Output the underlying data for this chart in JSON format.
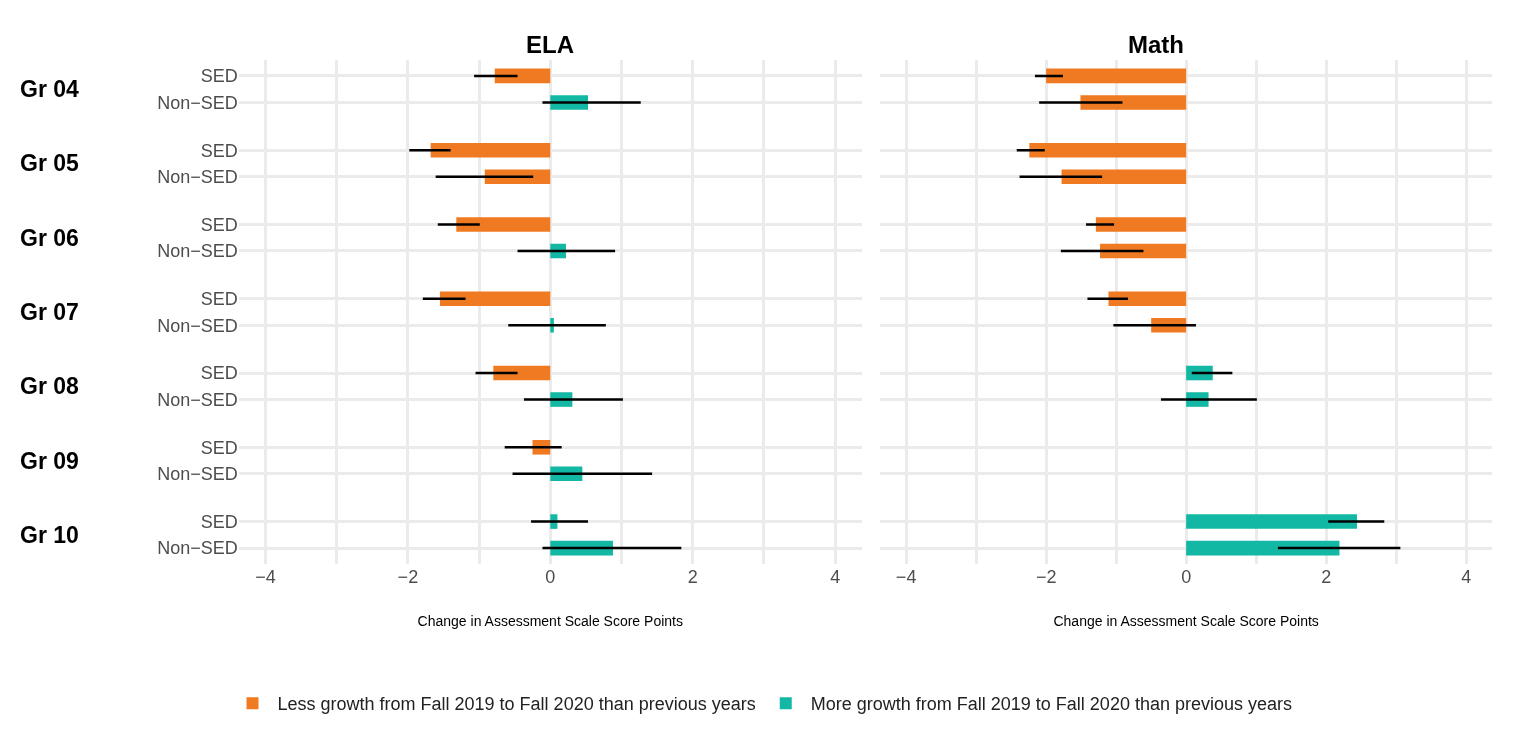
{
  "chart_data": [
    {
      "type": "bar",
      "orientation": "horizontal",
      "title": "ELA",
      "xlabel": "Change in Assessment Scale Score Points",
      "categories": [
        "SED",
        "Non−SED",
        "SED",
        "Non−SED",
        "SED",
        "Non−SED",
        "SED",
        "Non−SED",
        "SED",
        "Non−SED",
        "SED",
        "Non−SED",
        "SED",
        "Non−SED"
      ],
      "annotations": [
        "Gr 04",
        "Gr 05",
        "Gr 06",
        "Gr 07",
        "Gr 08",
        "Gr 09",
        "Gr 10"
      ],
      "series": [
        {
          "name": "Less growth from Fall 2019 to Fall 2020 than previous years",
          "color": "#f07a21",
          "values": [
            -0.78,
            null,
            -1.68,
            -0.92,
            -1.32,
            null,
            -1.55,
            null,
            -0.8,
            null,
            -0.25,
            null,
            null,
            null
          ],
          "errors": [
            [
              -1.07,
              -0.46
            ],
            null,
            [
              -1.98,
              -1.4
            ],
            [
              -1.61,
              -0.24
            ],
            [
              -1.58,
              -0.99
            ],
            null,
            [
              -1.79,
              -1.19
            ],
            null,
            [
              -1.05,
              -0.46
            ],
            null,
            [
              -0.64,
              0.16
            ],
            null,
            null,
            null
          ]
        },
        {
          "name": "More growth from Fall 2019 to Fall 2020 than previous years",
          "color": "#13b8a4",
          "values": [
            null,
            0.53,
            null,
            null,
            null,
            0.22,
            null,
            0.05,
            null,
            0.31,
            null,
            0.45,
            0.1,
            0.88
          ],
          "errors": [
            null,
            [
              -0.11,
              1.27
            ],
            null,
            null,
            null,
            [
              -0.46,
              0.91
            ],
            null,
            [
              -0.59,
              0.78
            ],
            null,
            [
              -0.37,
              1.02
            ],
            null,
            [
              -0.53,
              1.43
            ],
            [
              -0.27,
              0.53
            ],
            [
              -0.11,
              1.84
            ]
          ]
        }
      ],
      "xlim": [
        -4.375,
        4.375
      ],
      "xticks": [
        -4,
        {
          "value": -3,
          "label": null
        },
        -2,
        {
          "value": -1,
          "label": null
        },
        0,
        {
          "value": 1,
          "label": null
        },
        2,
        {
          "value": 3,
          "label": null
        },
        4
      ],
      "grid": true,
      "legend": "bottom"
    },
    {
      "type": "bar",
      "orientation": "horizontal",
      "title": "Math",
      "xlabel": "Change in Assessment Scale Score Points",
      "series": [
        {
          "color": "#f07a21",
          "values": [
            -2.0,
            -1.51,
            -2.24,
            -1.78,
            -1.29,
            -1.23,
            -1.11,
            -0.5,
            null,
            null,
            null,
            null,
            null,
            null
          ],
          "errors": [
            [
              -2.16,
              -1.76
            ],
            [
              -2.1,
              -0.91
            ],
            [
              -2.42,
              -2.02
            ],
            [
              -2.38,
              -1.2
            ],
            [
              -1.43,
              -1.03
            ],
            [
              -1.79,
              -0.61
            ],
            [
              -1.41,
              -0.83
            ],
            [
              -1.04,
              0.14
            ],
            null,
            null,
            null,
            null,
            null,
            null
          ]
        },
        {
          "color": "#13b8a4",
          "values": [
            null,
            null,
            null,
            null,
            null,
            null,
            null,
            null,
            0.38,
            0.32,
            null,
            null,
            2.44,
            2.19
          ],
          "errors": [
            null,
            null,
            null,
            null,
            null,
            null,
            null,
            null,
            [
              0.08,
              0.66
            ],
            [
              -0.36,
              1.01
            ],
            null,
            null,
            [
              2.03,
              2.83
            ],
            [
              1.31,
              3.06
            ]
          ]
        }
      ],
      "xlim": [
        -4.375,
        4.375
      ],
      "xticks": [
        -4,
        {
          "value": -3,
          "label": null
        },
        -2,
        {
          "value": -1,
          "label": null
        },
        0,
        {
          "value": 1,
          "label": null
        },
        2,
        {
          "value": 3,
          "label": null
        },
        4
      ],
      "grid": true,
      "legend": "bottom",
      "tick_labels": "x"
    }
  ]
}
